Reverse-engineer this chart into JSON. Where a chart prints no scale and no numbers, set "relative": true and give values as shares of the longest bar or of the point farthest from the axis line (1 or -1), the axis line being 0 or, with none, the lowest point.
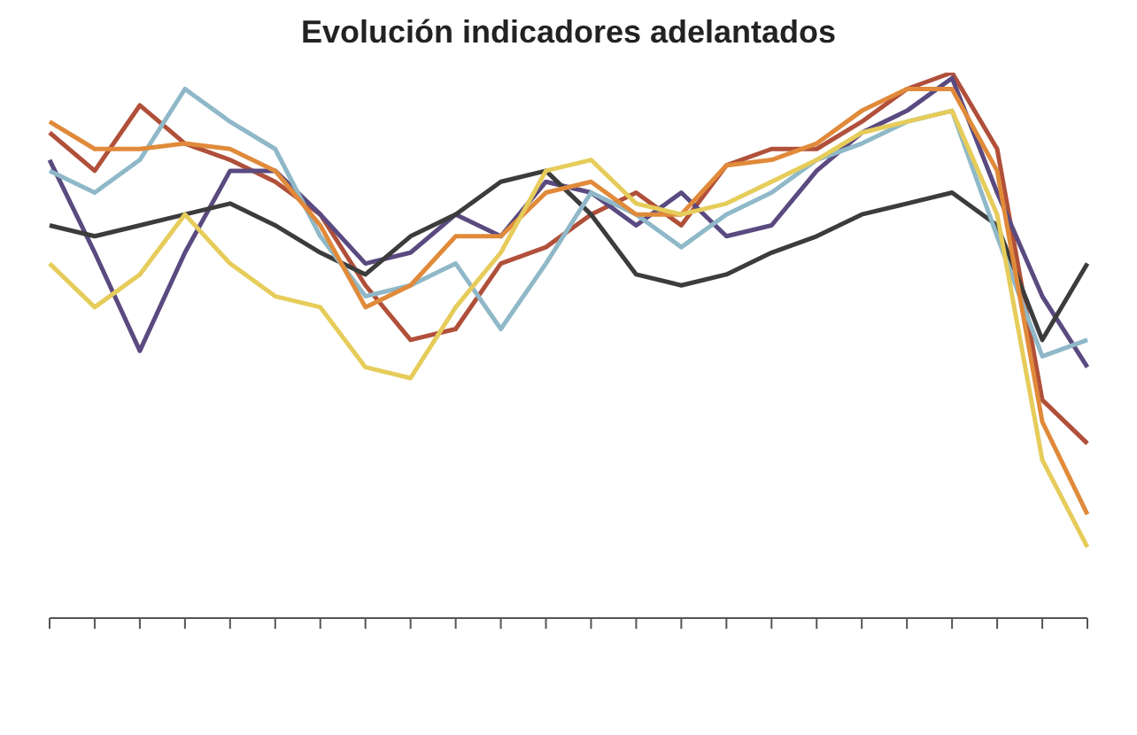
{
  "chart_data": {
    "type": "line",
    "title": "Evolución indicadores adelantados",
    "relative": true,
    "legend": false,
    "marker": "none",
    "line_style": "solid",
    "categories": [
      null,
      null,
      null,
      null,
      null,
      null,
      null,
      null,
      null,
      null,
      null,
      null,
      null,
      null,
      null,
      null,
      null,
      null,
      null,
      null,
      null,
      null,
      null,
      null
    ],
    "series": [
      {
        "color": "#b0503a",
        "values": [
          0.89,
          0.82,
          0.94,
          0.87,
          0.84,
          0.8,
          0.74,
          0.61,
          0.51,
          0.53,
          0.65,
          0.68,
          0.74,
          0.78,
          0.72,
          0.83,
          0.86,
          0.86,
          0.91,
          0.97,
          1.0,
          0.86,
          0.4,
          0.32
        ]
      },
      {
        "color": "#5a4a80",
        "values": [
          0.84,
          0.67,
          0.49,
          0.67,
          0.82,
          0.82,
          0.74,
          0.65,
          0.67,
          0.74,
          0.7,
          0.8,
          0.78,
          0.72,
          0.78,
          0.7,
          0.72,
          0.82,
          0.89,
          0.93,
          0.99,
          0.78,
          0.59,
          0.46
        ]
      },
      {
        "color": "#3c3c3c",
        "values": [
          0.72,
          0.7,
          0.72,
          0.74,
          0.76,
          0.72,
          0.67,
          0.63,
          0.7,
          0.74,
          0.8,
          0.82,
          0.74,
          0.63,
          0.61,
          0.63,
          0.67,
          0.7,
          0.74,
          0.76,
          0.78,
          0.72,
          0.51,
          0.65
        ]
      },
      {
        "color": "#8fb8c8",
        "values": [
          0.82,
          0.78,
          0.84,
          0.97,
          0.91,
          0.86,
          0.7,
          0.59,
          0.61,
          0.65,
          0.53,
          0.65,
          0.78,
          0.74,
          0.68,
          0.74,
          0.78,
          0.84,
          0.87,
          0.91,
          0.93,
          0.7,
          0.48,
          0.51
        ]
      },
      {
        "color": "#e08a3a",
        "values": [
          0.91,
          0.86,
          0.86,
          0.87,
          0.86,
          0.82,
          0.72,
          0.57,
          0.61,
          0.7,
          0.7,
          0.78,
          0.8,
          0.74,
          0.74,
          0.83,
          0.84,
          0.87,
          0.93,
          0.97,
          0.97,
          0.82,
          0.36,
          0.19
        ]
      },
      {
        "color": "#e6cc5a",
        "values": [
          0.65,
          0.57,
          0.63,
          0.74,
          0.65,
          0.59,
          0.57,
          0.46,
          0.44,
          0.57,
          0.67,
          0.82,
          0.84,
          0.76,
          0.74,
          0.76,
          0.8,
          0.84,
          0.89,
          0.91,
          0.93,
          0.74,
          0.29,
          0.13
        ]
      }
    ]
  }
}
